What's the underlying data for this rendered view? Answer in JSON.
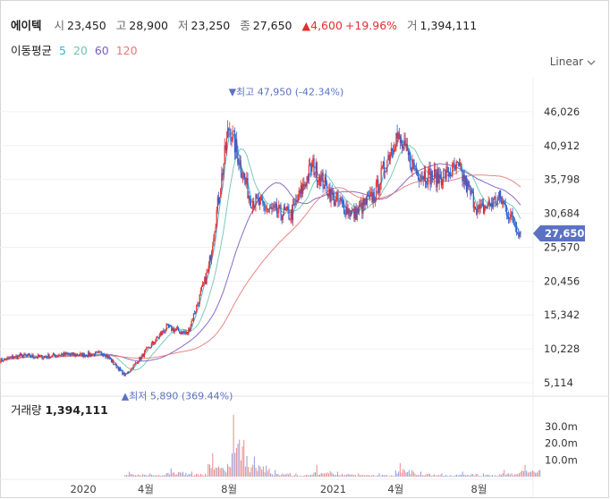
{
  "header": {
    "stock_name": "에이텍",
    "open_label": "시",
    "open": "23,450",
    "high_label": "고",
    "high": "28,900",
    "low_label": "저",
    "low": "23,250",
    "close_label": "종",
    "close": "27,650",
    "change": "▲4,600",
    "change_pct": "+19.96%",
    "volume_label": "거",
    "volume": "1,394,111"
  },
  "ma_legend": {
    "label": "이동평균",
    "periods": [
      {
        "label": "5",
        "color": "#29b6d6"
      },
      {
        "label": "20",
        "color": "#6fc3b0"
      },
      {
        "label": "60",
        "color": "#7a5cc7"
      },
      {
        "label": "120",
        "color": "#e87878"
      }
    ]
  },
  "scale_mode": "Linear",
  "chart_data": {
    "type": "candlestick",
    "price_axis": {
      "ticks": [
        "46,026",
        "40,912",
        "35,798",
        "30,684",
        "25,570",
        "20,456",
        "15,342",
        "10,228",
        "5,114"
      ],
      "range": [
        3500,
        51000
      ]
    },
    "current_price": {
      "label": "27,650",
      "value": 27650,
      "color": "#5b72c4"
    },
    "x_axis": {
      "labels": [
        {
          "label": "2020",
          "date": "2020-01"
        },
        {
          "label": "4월",
          "date": "2020-04"
        },
        {
          "label": "8월",
          "date": "2020-08"
        },
        {
          "label": "2021",
          "date": "2021-01"
        },
        {
          "label": "4월",
          "date": "2021-04"
        },
        {
          "label": "8월",
          "date": "2021-08"
        }
      ],
      "start": "2019-09",
      "end": "2021-10"
    },
    "annotations": {
      "high": {
        "text": "▼최고 47,950 (-42.34%)",
        "value": 47950,
        "date": "2020-08"
      },
      "low": {
        "text": "▲최저 5,890 (369.44%)",
        "value": 5890,
        "date": "2020-03"
      }
    },
    "price_path": [
      [
        "2019-09",
        8500
      ],
      [
        "2019-10",
        9200
      ],
      [
        "2019-11",
        9000
      ],
      [
        "2019-12",
        9400
      ],
      [
        "2020-01",
        9300
      ],
      [
        "2020-02",
        9600
      ],
      [
        "2020-03",
        6200
      ],
      [
        "2020-04",
        9800
      ],
      [
        "2020-05",
        13500
      ],
      [
        "2020-06",
        12500
      ],
      [
        "2020-07",
        22000
      ],
      [
        "2020-08",
        44000
      ],
      [
        "2020-09",
        33000
      ],
      [
        "2020-10",
        31000
      ],
      [
        "2020-11",
        30500
      ],
      [
        "2020-12",
        38000
      ],
      [
        "2021-01",
        33000
      ],
      [
        "2021-02",
        30500
      ],
      [
        "2021-03",
        33500
      ],
      [
        "2021-04",
        42500
      ],
      [
        "2021-05",
        37000
      ],
      [
        "2021-06",
        36000
      ],
      [
        "2021-07",
        37500
      ],
      [
        "2021-08",
        31000
      ],
      [
        "2021-09",
        33000
      ],
      [
        "2021-10",
        27650
      ]
    ],
    "volume_panel": {
      "label": "거래량",
      "value": "1,394,111",
      "ticks": [
        "30.0m",
        "20.0m",
        "10.0m"
      ],
      "range": [
        0,
        38
      ],
      "unit": "m",
      "bars": [
        [
          "2020-03",
          3
        ],
        [
          "2020-04",
          2
        ],
        [
          "2020-05",
          5
        ],
        [
          "2020-06",
          3
        ],
        [
          "2020-07",
          14
        ],
        [
          "2020-08",
          37
        ],
        [
          "2020-09",
          12
        ],
        [
          "2020-10",
          4
        ],
        [
          "2020-11",
          2
        ],
        [
          "2020-12",
          7
        ],
        [
          "2021-01",
          3
        ],
        [
          "2021-02",
          2
        ],
        [
          "2021-03",
          2
        ],
        [
          "2021-04",
          8
        ],
        [
          "2021-05",
          3
        ],
        [
          "2021-06",
          2
        ],
        [
          "2021-07",
          3
        ],
        [
          "2021-08",
          2
        ],
        [
          "2021-09",
          4
        ],
        [
          "2021-10",
          7
        ]
      ]
    }
  }
}
